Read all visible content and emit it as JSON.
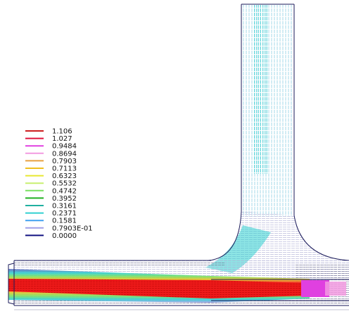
{
  "legend": {
    "entries": [
      {
        "label": "1.106",
        "color": "#cc1f1f"
      },
      {
        "label": "1.027",
        "color": "#e0143c"
      },
      {
        "label": "0.9484",
        "color": "#e040e0"
      },
      {
        "label": "0.8694",
        "color": "#f29ae0"
      },
      {
        "label": "0.7903",
        "color": "#e8a040"
      },
      {
        "label": "0.7113",
        "color": "#f0c020"
      },
      {
        "label": "0.6323",
        "color": "#e8e830"
      },
      {
        "label": "0.5532",
        "color": "#c8f070"
      },
      {
        "label": "0.4742",
        "color": "#78e060"
      },
      {
        "label": "0.3952",
        "color": "#20b020"
      },
      {
        "label": "0.3161",
        "color": "#20b0a0"
      },
      {
        "label": "0.2371",
        "color": "#30d0d0"
      },
      {
        "label": "0.1581",
        "color": "#40a0f0"
      },
      {
        "label": "0.7903E-01",
        "color": "#a0a0e8"
      },
      {
        "label": "0.0000",
        "color": "#101080"
      }
    ]
  },
  "colors": {
    "outline": "#1a1a5a",
    "mesh": "#9a9ab0"
  }
}
